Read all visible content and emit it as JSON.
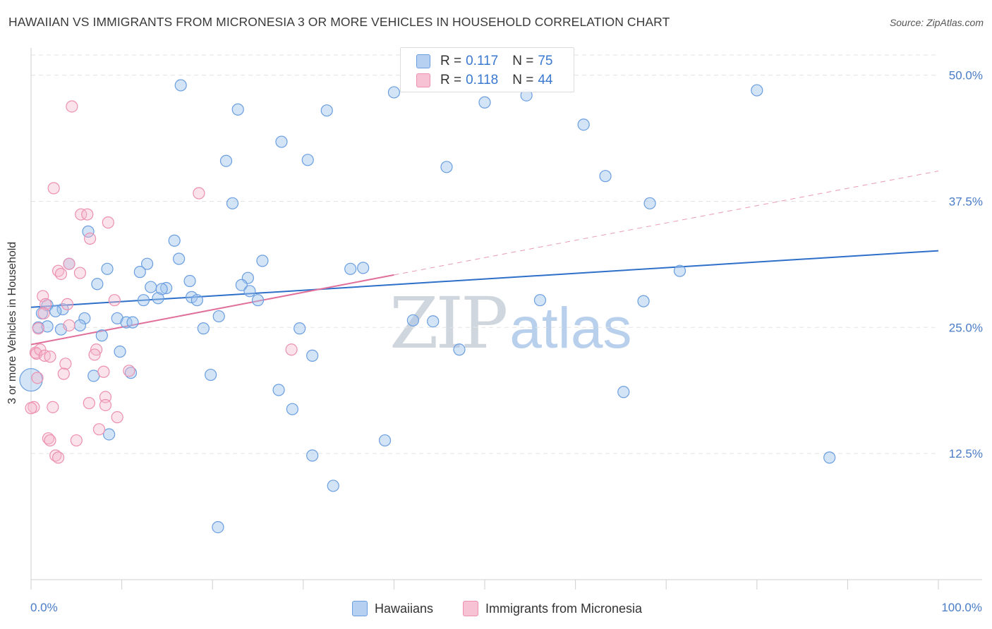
{
  "title": "HAWAIIAN VS IMMIGRANTS FROM MICRONESIA 3 OR MORE VEHICLES IN HOUSEHOLD CORRELATION CHART",
  "source": "Source: ZipAtlas.com",
  "watermark": {
    "zip": "ZIP",
    "atlas": "atlas"
  },
  "legend_top": [
    {
      "r_label": "R =",
      "r_value": "0.117",
      "n_label": "N =",
      "n_value": "75"
    },
    {
      "r_label": "R =",
      "r_value": "0.118",
      "n_label": "N =",
      "n_value": "44"
    }
  ],
  "chart_data": {
    "type": "scatter",
    "title": "HAWAIIAN VS IMMIGRANTS FROM MICRONESIA 3 OR MORE VEHICLES IN HOUSEHOLD CORRELATION CHART",
    "xlabel": "",
    "ylabel": "3 or more Vehicles in Household",
    "x_tick_labels": {
      "min": "0.0%",
      "max": "100.0%"
    },
    "y_tick_labels": [
      "12.5%",
      "25.0%",
      "37.5%",
      "50.0%"
    ],
    "xlim": [
      0,
      100
    ],
    "ylim": [
      0,
      52
    ],
    "grid": true,
    "legend_position": "bottom",
    "colors": {
      "hawaiians": "#6a9ee0",
      "micronesia": "#ec8fb0",
      "hawaiians_line": "#2d6fc9",
      "micronesia_line": "#e0709a",
      "axis_text": "#4a7cc7"
    },
    "series": [
      {
        "name": "Hawaiians",
        "r": 0.117,
        "n": 75,
        "trend": {
          "x_start": 0,
          "y_start": 27.0,
          "x_end": 100,
          "y_end": 32.6
        },
        "points": [
          [
            16.5,
            49.0
          ],
          [
            22.8,
            46.6
          ],
          [
            32.6,
            46.5
          ],
          [
            40.0,
            48.3
          ],
          [
            60.9,
            45.1
          ],
          [
            80.0,
            48.5
          ],
          [
            27.6,
            43.4
          ],
          [
            21.5,
            41.5
          ],
          [
            30.5,
            41.6
          ],
          [
            45.8,
            40.9
          ],
          [
            50.0,
            47.3
          ],
          [
            63.3,
            40.0
          ],
          [
            22.2,
            37.3
          ],
          [
            54.6,
            48.0
          ],
          [
            68.2,
            37.3
          ],
          [
            6.3,
            34.5
          ],
          [
            15.8,
            33.6
          ],
          [
            16.3,
            31.8
          ],
          [
            25.5,
            31.6
          ],
          [
            8.4,
            30.8
          ],
          [
            12.8,
            31.3
          ],
          [
            12.0,
            30.5
          ],
          [
            4.2,
            31.3
          ],
          [
            17.5,
            29.6
          ],
          [
            23.9,
            29.9
          ],
          [
            7.3,
            29.3
          ],
          [
            13.2,
            29.0
          ],
          [
            14.9,
            28.9
          ],
          [
            14.4,
            28.8
          ],
          [
            23.2,
            29.2
          ],
          [
            24.1,
            28.6
          ],
          [
            17.7,
            28.0
          ],
          [
            18.3,
            27.7
          ],
          [
            14.0,
            27.9
          ],
          [
            12.4,
            27.7
          ],
          [
            25.0,
            27.7
          ],
          [
            35.2,
            30.8
          ],
          [
            36.6,
            30.9
          ],
          [
            56.1,
            27.7
          ],
          [
            67.5,
            27.6
          ],
          [
            1.8,
            27.2
          ],
          [
            3.5,
            26.8
          ],
          [
            2.7,
            26.6
          ],
          [
            1.2,
            26.4
          ],
          [
            5.9,
            25.9
          ],
          [
            9.5,
            25.9
          ],
          [
            20.7,
            26.1
          ],
          [
            0.8,
            25.0
          ],
          [
            1.8,
            25.1
          ],
          [
            3.3,
            24.8
          ],
          [
            5.4,
            25.2
          ],
          [
            10.5,
            25.5
          ],
          [
            11.2,
            25.5
          ],
          [
            19.0,
            24.9
          ],
          [
            29.6,
            24.9
          ],
          [
            42.1,
            25.7
          ],
          [
            44.3,
            25.6
          ],
          [
            7.8,
            24.2
          ],
          [
            9.8,
            22.6
          ],
          [
            31.0,
            22.2
          ],
          [
            47.2,
            22.8
          ],
          [
            0.0,
            19.8
          ],
          [
            6.9,
            20.2
          ],
          [
            11.0,
            20.5
          ],
          [
            19.8,
            20.3
          ],
          [
            27.3,
            18.8
          ],
          [
            65.3,
            18.6
          ],
          [
            28.8,
            16.9
          ],
          [
            8.6,
            14.4
          ],
          [
            39.0,
            13.8
          ],
          [
            31.0,
            12.3
          ],
          [
            88.0,
            12.1
          ],
          [
            33.3,
            9.3
          ],
          [
            20.6,
            5.2
          ],
          [
            71.5,
            30.6
          ]
        ]
      },
      {
        "name": "Immigrants from Micronesia",
        "r": 0.118,
        "n": 44,
        "trend": {
          "x_start": 0,
          "y_start": 23.3,
          "x_end": 40,
          "y_end": 30.2,
          "dashed_to_x": 100,
          "dashed_to_y": 40.5
        },
        "points": [
          [
            4.5,
            46.9
          ],
          [
            2.5,
            38.8
          ],
          [
            18.5,
            38.3
          ],
          [
            5.5,
            36.2
          ],
          [
            6.2,
            36.2
          ],
          [
            8.5,
            35.4
          ],
          [
            6.5,
            33.8
          ],
          [
            4.2,
            31.3
          ],
          [
            3.0,
            30.6
          ],
          [
            3.3,
            30.3
          ],
          [
            5.4,
            30.4
          ],
          [
            1.3,
            28.1
          ],
          [
            9.2,
            27.7
          ],
          [
            1.6,
            27.3
          ],
          [
            4.0,
            27.3
          ],
          [
            1.4,
            26.4
          ],
          [
            0.8,
            24.9
          ],
          [
            4.2,
            25.2
          ],
          [
            0.5,
            22.5
          ],
          [
            0.6,
            22.4
          ],
          [
            1.0,
            22.8
          ],
          [
            1.5,
            22.2
          ],
          [
            2.1,
            22.1
          ],
          [
            7.2,
            22.8
          ],
          [
            7.0,
            22.3
          ],
          [
            28.7,
            22.8
          ],
          [
            3.8,
            21.4
          ],
          [
            3.6,
            20.4
          ],
          [
            8.0,
            20.6
          ],
          [
            10.8,
            20.7
          ],
          [
            0.7,
            20.0
          ],
          [
            8.2,
            18.1
          ],
          [
            6.4,
            17.5
          ],
          [
            8.2,
            17.3
          ],
          [
            0.3,
            17.1
          ],
          [
            2.4,
            17.1
          ],
          [
            9.5,
            16.1
          ],
          [
            7.5,
            14.9
          ],
          [
            1.9,
            14.0
          ],
          [
            2.1,
            13.8
          ],
          [
            5.0,
            13.8
          ],
          [
            2.7,
            12.3
          ],
          [
            3.0,
            12.1
          ],
          [
            0.0,
            17.0
          ]
        ]
      }
    ]
  }
}
